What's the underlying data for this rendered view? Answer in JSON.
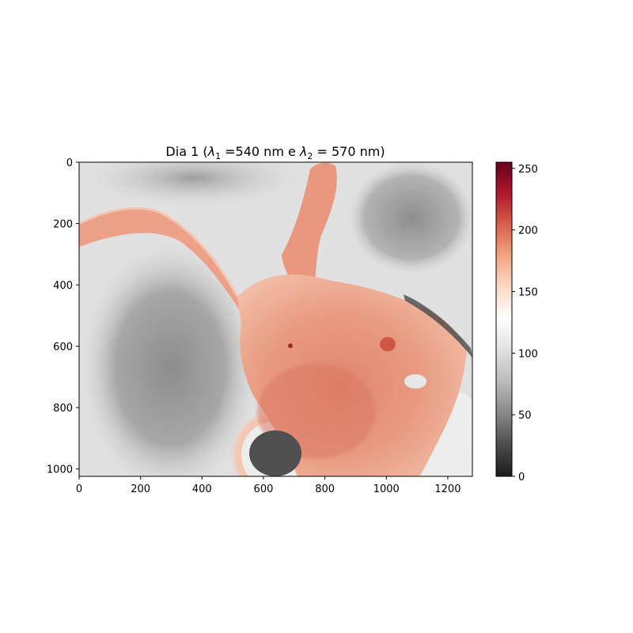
{
  "chart_data": {
    "type": "heatmap",
    "title": {
      "prefix": "Dia 1 (",
      "sym1": "λ",
      "sub1": "1",
      "mid": " =540 nm e ",
      "sym2": "λ",
      "sub2": "2",
      "suffix": " = 570 nm)"
    },
    "xlim": [
      0,
      1280
    ],
    "ylim": [
      1024,
      0
    ],
    "xticks": [
      0,
      200,
      400,
      600,
      800,
      1000,
      1200
    ],
    "yticks": [
      0,
      200,
      400,
      600,
      800,
      1000
    ],
    "colormap": "RdGy_r",
    "colormap_stops": [
      "#1a1a1a",
      "#4d4d4d",
      "#878787",
      "#bababa",
      "#e0e0e0",
      "#ffffff",
      "#fddbc7",
      "#f4a582",
      "#d6604d",
      "#b2182b",
      "#67001f"
    ],
    "colorbar": {
      "range": [
        0,
        255
      ],
      "ticks": [
        0,
        50,
        100,
        150,
        200,
        250
      ]
    },
    "regions": [
      {
        "name": "background-field",
        "value": 95
      },
      {
        "name": "specimen-body",
        "value": 190
      },
      {
        "name": "upper-arm",
        "value": 185
      },
      {
        "name": "left-arm",
        "value": 180
      },
      {
        "name": "dark-spot",
        "value": 60
      },
      {
        "name": "halo-ring",
        "value": 165
      }
    ]
  }
}
